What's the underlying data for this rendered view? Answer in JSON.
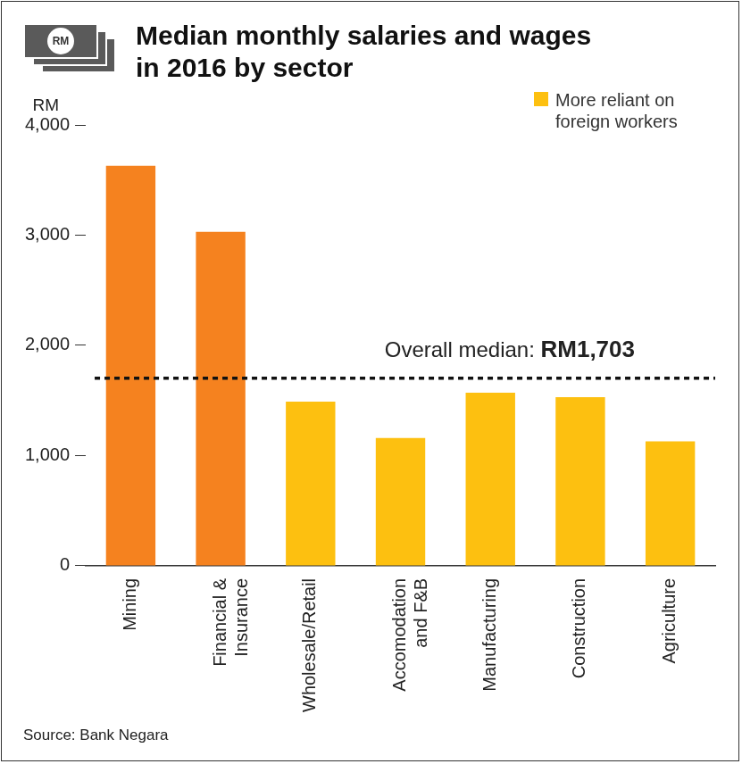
{
  "chart_data": {
    "type": "bar",
    "title": [
      "Median monthly salaries and wages",
      "in 2016 by sector"
    ],
    "icon_label": "RM",
    "y_label": "RM",
    "categories": [
      "Mining",
      "Financial & Insurance",
      "Wholesale/Retail",
      "Accomodation and F&B",
      "Manufacturing",
      "Construction",
      "Agriculture"
    ],
    "values": [
      3630,
      3030,
      1490,
      1160,
      1570,
      1530,
      1130
    ],
    "colors": [
      "#f5821f",
      "#f5821f",
      "#fdc010",
      "#fdc010",
      "#fdc010",
      "#fdc010",
      "#fdc010"
    ],
    "ylim": [
      0,
      4000
    ],
    "yticks": [
      0,
      {
        "value": 1000,
        "label": "1,000"
      },
      {
        "value": 2000,
        "label": "2,000"
      },
      {
        "value": 3000,
        "label": "3,000"
      },
      {
        "value": 4000,
        "label": "4,000"
      }
    ],
    "grid": false,
    "data_labels": false,
    "legend": "top-right",
    "legend_entries": [
      {
        "label": "More reliant on foreign workers",
        "color": "#fdc010"
      }
    ],
    "annotations": [
      {
        "type": "hline",
        "value": 1703,
        "label": "Overall median:",
        "value_label": "RM1,703",
        "line_style": "dashed"
      }
    ],
    "source": "Source: Bank Negara"
  }
}
